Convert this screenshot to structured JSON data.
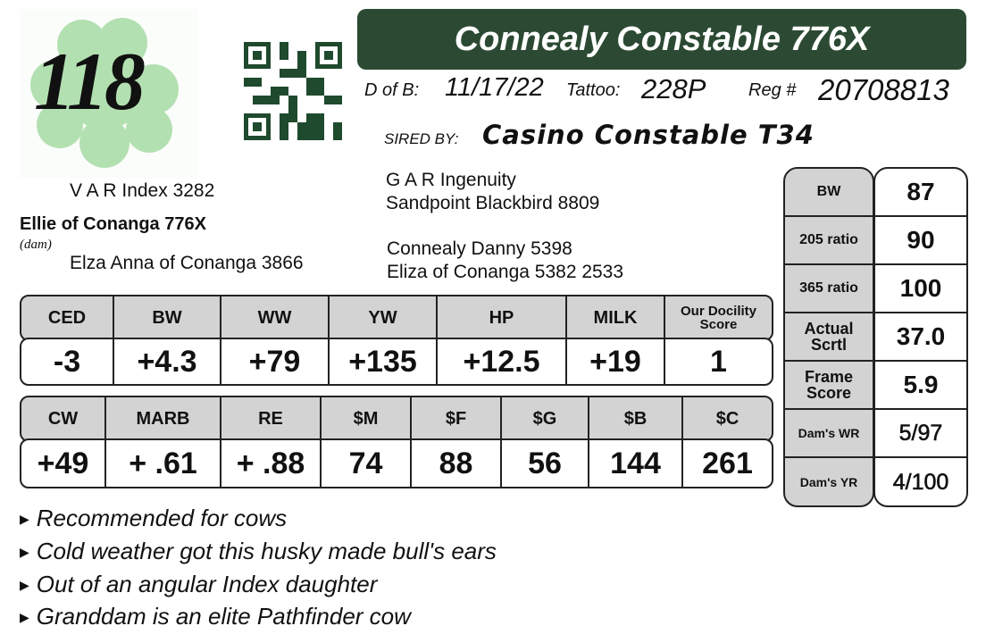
{
  "lot_number": "118",
  "title": "Connealy Constable 776X",
  "dob_label": "D of B:",
  "dob": "11/17/22",
  "tattoo_label": "Tattoo:",
  "tattoo": "228P",
  "reg_label": "Reg #",
  "reg": "20708813",
  "sired_label": "SIRED BY:",
  "sire": "Casino Constable T34",
  "pedigree": {
    "sire_sire": "G A R Ingenuity",
    "sire_dam": "Sandpoint Blackbird 8809",
    "dam_sire": "Connealy Danny 5398",
    "dam_dam": "Eliza of Conanga 5382 2533",
    "var_index": "V A R Index 3282",
    "dam": "Ellie of Conanga 776X",
    "dam_label": "(dam)",
    "dam_dam_name": "Elza Anna of Conanga 3866"
  },
  "epd_table1": {
    "headers": [
      "CED",
      "BW",
      "WW",
      "YW",
      "HP",
      "MILK",
      "Our Docility Score"
    ],
    "values": [
      "-3",
      "+4.3",
      "+79",
      "+135",
      "+12.5",
      "+19",
      "1"
    ]
  },
  "epd_table2": {
    "headers": [
      "CW",
      "MARB",
      "RE",
      "$M",
      "$F",
      "$G",
      "$B",
      "$C"
    ],
    "values": [
      "+49",
      "+ .61",
      "+ .88",
      "74",
      "88",
      "56",
      "144",
      "261"
    ]
  },
  "performance": [
    {
      "label": "BW",
      "value": "87"
    },
    {
      "label": "205 ratio",
      "value": "90"
    },
    {
      "label": "365 ratio",
      "value": "100"
    },
    {
      "label": "Actual Scrtl",
      "value": "37.0"
    },
    {
      "label": "Frame Score",
      "value": "5.9"
    },
    {
      "label": "Dam's WR",
      "value": "5/97"
    },
    {
      "label": "Dam's YR",
      "value": "4/100"
    }
  ],
  "notes": [
    "Recommended for cows",
    "Cold weather got this husky made bull's ears",
    "Out of an angular Index daughter",
    "Granddam is an elite Pathfinder cow"
  ],
  "colors": {
    "title_bg": "#2c4a33",
    "header_bg": "#d3d3d3",
    "clover": "#a9dca9",
    "qr": "#1f4a2e"
  }
}
